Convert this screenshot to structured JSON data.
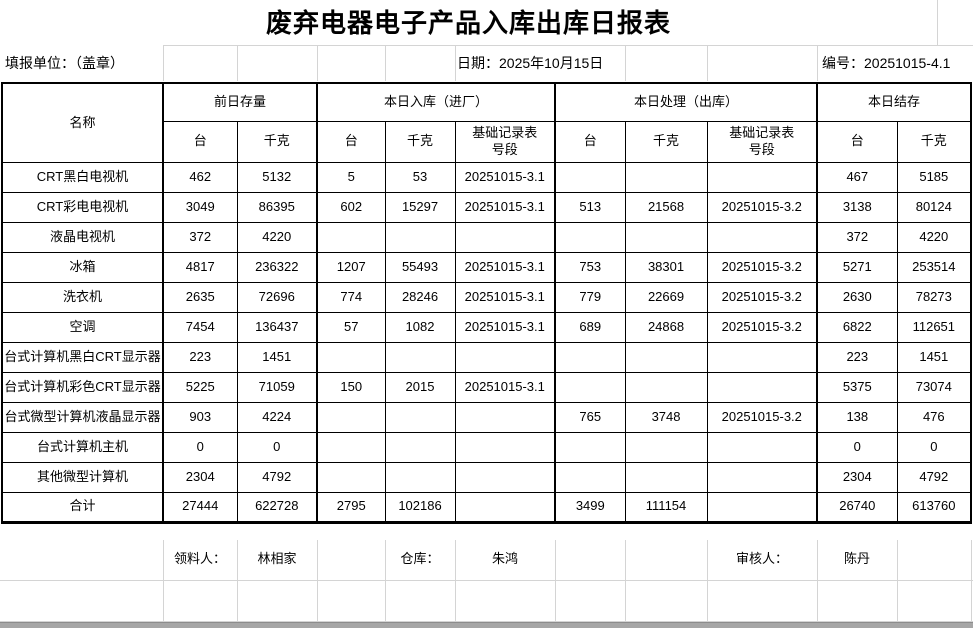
{
  "title": "废弃电器电子产品入库出库日报表",
  "info": {
    "report_unit": "填报单位：（盖章）",
    "date": "日期：2025年10月15日",
    "serial": "编号：20251015-4.1"
  },
  "table": {
    "name_header": "名称",
    "groups": [
      {
        "label": "前日存量",
        "cols": [
          "台",
          "千克"
        ]
      },
      {
        "label": "本日入库（进厂）",
        "cols": [
          "台",
          "千克",
          "基础记录表\n号段"
        ]
      },
      {
        "label": "本日处理（出库）",
        "cols": [
          "台",
          "千克",
          "基础记录表\n号段"
        ]
      },
      {
        "label": "本日结存",
        "cols": [
          "台",
          "千克"
        ]
      }
    ],
    "rows": [
      {
        "name": "CRT黑白电视机",
        "cells": [
          "462",
          "5132",
          "5",
          "53",
          "20251015-3.1",
          "",
          "",
          "",
          "467",
          "5185"
        ]
      },
      {
        "name": "CRT彩电电视机",
        "cells": [
          "3049",
          "86395",
          "602",
          "15297",
          "20251015-3.1",
          "513",
          "21568",
          "20251015-3.2",
          "3138",
          "80124"
        ]
      },
      {
        "name": "液晶电视机",
        "cells": [
          "372",
          "4220",
          "",
          "",
          "",
          "",
          "",
          "",
          "372",
          "4220"
        ]
      },
      {
        "name": "冰箱",
        "cells": [
          "4817",
          "236322",
          "1207",
          "55493",
          "20251015-3.1",
          "753",
          "38301",
          "20251015-3.2",
          "5271",
          "253514"
        ]
      },
      {
        "name": "洗衣机",
        "cells": [
          "2635",
          "72696",
          "774",
          "28246",
          "20251015-3.1",
          "779",
          "22669",
          "20251015-3.2",
          "2630",
          "78273"
        ]
      },
      {
        "name": "空调",
        "cells": [
          "7454",
          "136437",
          "57",
          "1082",
          "20251015-3.1",
          "689",
          "24868",
          "20251015-3.2",
          "6822",
          "112651"
        ]
      },
      {
        "name": "台式计算机黑白CRT显示器",
        "cells": [
          "223",
          "1451",
          "",
          "",
          "",
          "",
          "",
          "",
          "223",
          "1451"
        ]
      },
      {
        "name": "台式计算机彩色CRT显示器",
        "cells": [
          "5225",
          "71059",
          "150",
          "2015",
          "20251015-3.1",
          "",
          "",
          "",
          "5375",
          "73074"
        ]
      },
      {
        "name": "台式微型计算机液晶显示器",
        "cells": [
          "903",
          "4224",
          "",
          "",
          "",
          "765",
          "3748",
          "20251015-3.2",
          "138",
          "476"
        ]
      },
      {
        "name": "台式计算机主机",
        "cells": [
          "0",
          "0",
          "",
          "",
          "",
          "",
          "",
          "",
          "0",
          "0"
        ]
      },
      {
        "name": "其他微型计算机",
        "cells": [
          "2304",
          "4792",
          "",
          "",
          "",
          "",
          "",
          "",
          "2304",
          "4792"
        ]
      },
      {
        "name": "合计",
        "cells": [
          "27444",
          "622728",
          "2795",
          "102186",
          "",
          "3499",
          "111154",
          "",
          "26740",
          "613760"
        ]
      }
    ]
  },
  "signatures": [
    {
      "label": "领料人：",
      "name": "林相家"
    },
    {
      "label": "仓库：",
      "name": "朱鸿"
    },
    {
      "label": "审核人：",
      "name": "陈丹"
    }
  ],
  "colors": {
    "border": "#000000",
    "gridline": "#d4d4d4",
    "scrollbar": "#a6a6a6"
  }
}
